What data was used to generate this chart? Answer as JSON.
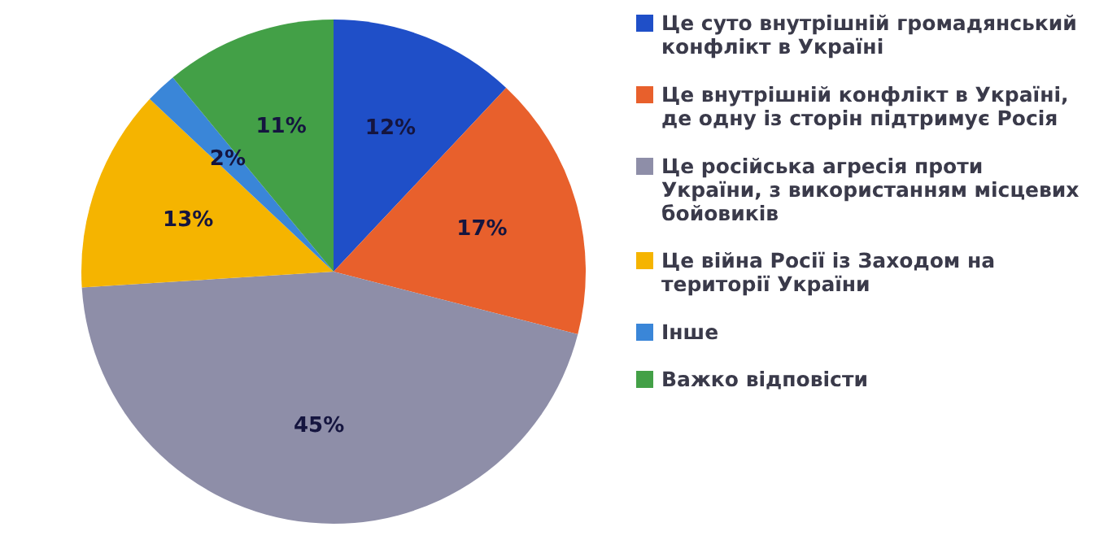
{
  "chart_data": {
    "type": "pie",
    "categories": [
      "Це суто внутрішній громадянський конфлікт в Україні",
      "Це внутрішній конфлікт в Україні, де одну із сторін підтримує Росія",
      "Це російська агресія проти України, з використанням місцевих бойовиків",
      "Це війна Росії із Заходом на території України",
      "Інше",
      "Важко відповісти"
    ],
    "values": [
      12,
      17,
      45,
      13,
      2,
      11
    ],
    "colors": [
      "#1f4fc8",
      "#e8602c",
      "#8e8ea8",
      "#f5b400",
      "#3a86d8",
      "#43a047"
    ],
    "value_labels": [
      "12%",
      "17%",
      "45%",
      "13%",
      "2%",
      "11%"
    ],
    "legend": "right"
  }
}
